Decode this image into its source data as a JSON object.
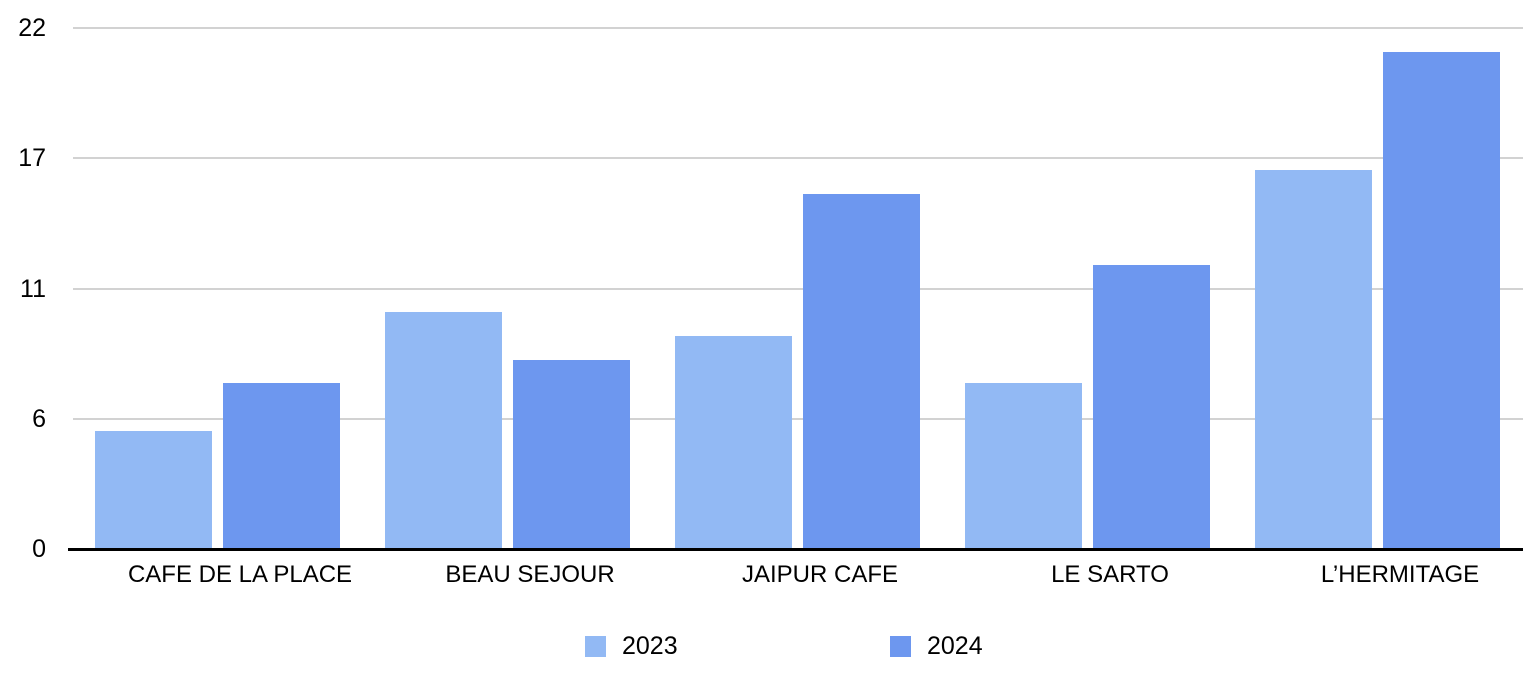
{
  "chart_data": {
    "type": "bar",
    "title": "",
    "categories": [
      "CAFE DE LA PLACE",
      "BEAU SEJOUR",
      "JAIPUR CAFE",
      "LE SARTO",
      "L’HERMITAGE"
    ],
    "series": [
      {
        "name": "2023",
        "color": "#92B9F4",
        "values": [
          5,
          10,
          9,
          7,
          16
        ]
      },
      {
        "name": "2024",
        "color": "#6D97EF",
        "values": [
          7,
          8,
          15,
          12,
          21
        ]
      }
    ],
    "ylim": [
      0,
      22
    ],
    "yticks": [
      {
        "value": 0,
        "label": "0"
      },
      {
        "value": 5.5,
        "label": "6"
      },
      {
        "value": 11,
        "label": "11"
      },
      {
        "value": 16.5,
        "label": "17"
      },
      {
        "value": 22,
        "label": "22"
      }
    ],
    "grid": true,
    "legend_position": "bottom",
    "xlabel": "",
    "ylabel": ""
  },
  "colors": {
    "background": "#ffffff",
    "gridline": "#d2d2d2",
    "axis_line": "#000000",
    "text": "#000000"
  }
}
